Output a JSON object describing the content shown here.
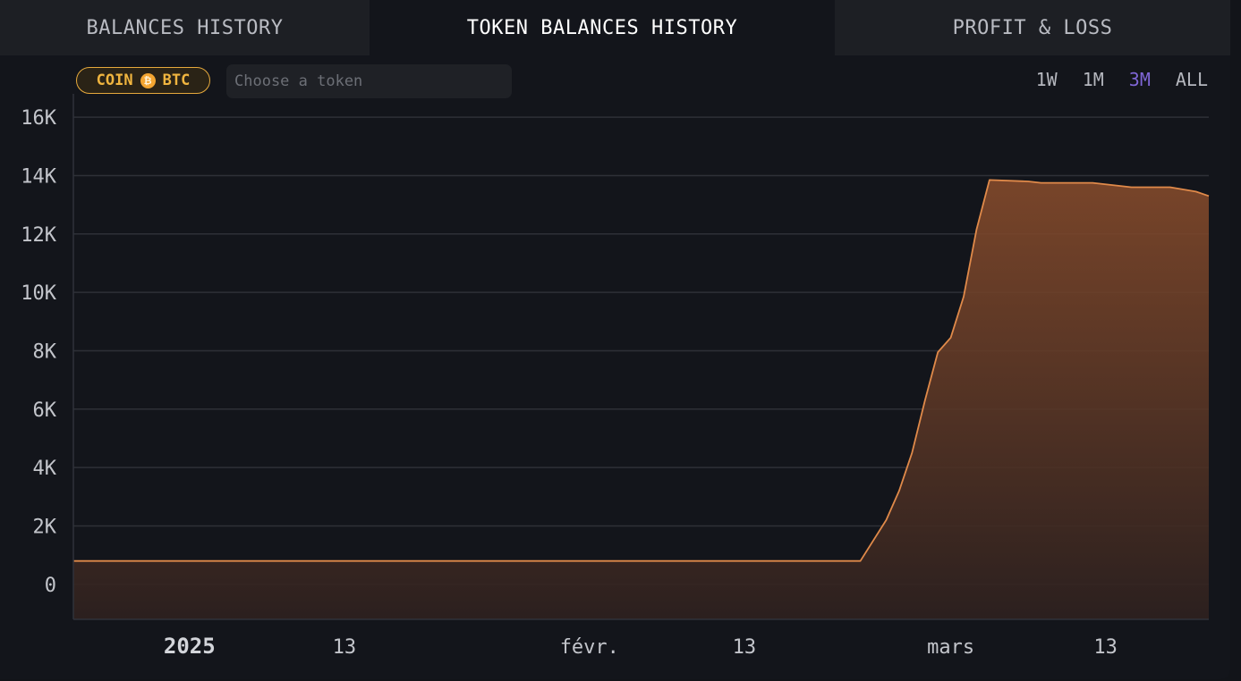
{
  "tabs": [
    {
      "label": "BALANCES HISTORY",
      "active": false
    },
    {
      "label": "TOKEN BALANCES HISTORY",
      "active": true
    },
    {
      "label": "PROFIT & LOSS",
      "active": false
    }
  ],
  "filter": {
    "badge_prefix": "COIN",
    "badge_icon": "bitcoin-icon",
    "badge_token": "BTC",
    "token_placeholder": "Choose a token"
  },
  "ranges": [
    {
      "label": "1W",
      "active": false
    },
    {
      "label": "1M",
      "active": false
    },
    {
      "label": "3M",
      "active": true
    },
    {
      "label": "ALL",
      "active": false
    }
  ],
  "colors": {
    "accent": "#7f66d6",
    "line": "#e08a4a",
    "badge": "#f0b53f"
  },
  "chart_data": {
    "type": "area",
    "x_ticks": [
      {
        "date": "2025-01-01",
        "label": "2025",
        "bold": true
      },
      {
        "date": "2025-01-13",
        "label": "13",
        "bold": false
      },
      {
        "date": "2025-02-01",
        "label": "févr.",
        "bold": false
      },
      {
        "date": "2025-02-13",
        "label": "13",
        "bold": false
      },
      {
        "date": "2025-03-01",
        "label": "mars",
        "bold": false
      },
      {
        "date": "2025-03-13",
        "label": "13",
        "bold": false
      }
    ],
    "y_ticks": [
      {
        "value": 0,
        "label": "0"
      },
      {
        "value": 2000,
        "label": "2K"
      },
      {
        "value": 4000,
        "label": "4K"
      },
      {
        "value": 6000,
        "label": "6K"
      },
      {
        "value": 8000,
        "label": "8K"
      },
      {
        "value": 10000,
        "label": "10K"
      },
      {
        "value": 12000,
        "label": "12K"
      },
      {
        "value": 14000,
        "label": "14K"
      },
      {
        "value": 16000,
        "label": "16K"
      }
    ],
    "ylim": [
      -1200,
      16800
    ],
    "xlim": [
      "2024-12-23",
      "2025-03-21"
    ],
    "grid": true,
    "series": [
      {
        "color": "#e08a4a",
        "points": [
          [
            "2024-12-23",
            800
          ],
          [
            "2025-01-13",
            800
          ],
          [
            "2025-02-01",
            800
          ],
          [
            "2025-02-13",
            800
          ],
          [
            "2025-02-22",
            800
          ],
          [
            "2025-02-24",
            2200
          ],
          [
            "2025-02-25",
            3200
          ],
          [
            "2025-02-26",
            4500
          ],
          [
            "2025-02-27",
            6300
          ],
          [
            "2025-02-28",
            7950
          ],
          [
            "2025-03-01",
            8450
          ],
          [
            "2025-03-02",
            9850
          ],
          [
            "2025-03-03",
            12150
          ],
          [
            "2025-03-04",
            13850
          ],
          [
            "2025-03-07",
            13800
          ],
          [
            "2025-03-08",
            13750
          ],
          [
            "2025-03-12",
            13750
          ],
          [
            "2025-03-14",
            13650
          ],
          [
            "2025-03-15",
            13600
          ],
          [
            "2025-03-18",
            13600
          ],
          [
            "2025-03-20",
            13450
          ],
          [
            "2025-03-21",
            13300
          ]
        ]
      }
    ]
  }
}
